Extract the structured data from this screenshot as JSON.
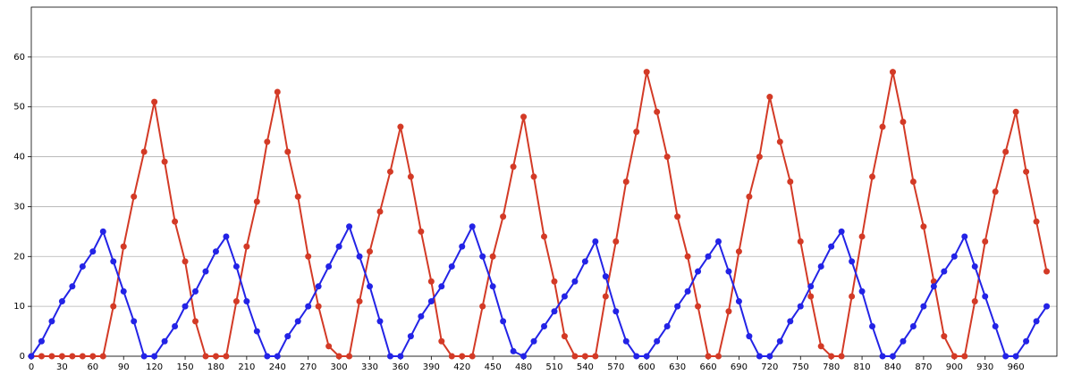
{
  "chart_data": {
    "type": "line",
    "x": [
      0,
      10,
      20,
      30,
      40,
      50,
      60,
      70,
      80,
      90,
      100,
      110,
      120,
      130,
      140,
      150,
      160,
      170,
      180,
      190,
      200,
      210,
      220,
      230,
      240,
      250,
      260,
      270,
      280,
      290,
      300,
      310,
      320,
      330,
      340,
      350,
      360,
      370,
      380,
      390,
      400,
      410,
      420,
      430,
      440,
      450,
      460,
      470,
      480,
      490,
      500,
      510,
      520,
      530,
      540,
      550,
      560,
      570,
      580,
      590,
      600,
      610,
      620,
      630,
      640,
      650,
      660,
      670,
      680,
      690,
      700,
      710,
      720,
      730,
      740,
      750,
      760,
      770,
      780,
      790,
      800,
      810,
      820,
      830,
      840,
      850,
      860,
      870,
      880,
      890,
      900,
      910,
      920,
      930,
      940,
      950,
      960,
      970,
      980,
      990
    ],
    "series": [
      {
        "color": "#d33a26",
        "values": [
          0,
          0,
          0,
          0,
          0,
          0,
          0,
          0,
          10,
          22,
          32,
          41,
          51,
          39,
          27,
          19,
          7,
          0,
          0,
          0,
          11,
          22,
          31,
          43,
          53,
          41,
          32,
          20,
          10,
          2,
          0,
          0,
          11,
          21,
          29,
          37,
          46,
          36,
          25,
          15,
          3,
          0,
          0,
          0,
          10,
          20,
          28,
          38,
          48,
          36,
          24,
          15,
          4,
          0,
          0,
          0,
          12,
          23,
          35,
          45,
          57,
          49,
          40,
          28,
          20,
          10,
          0,
          0,
          9,
          21,
          32,
          40,
          52,
          43,
          35,
          23,
          12,
          2,
          0,
          0,
          12,
          24,
          36,
          46,
          57,
          47,
          35,
          26,
          15,
          4,
          0,
          0,
          11,
          23,
          33,
          41,
          49,
          37,
          27,
          17
        ]
      },
      {
        "color": "#2323e6",
        "values": [
          0,
          3,
          7,
          11,
          14,
          18,
          21,
          25,
          19,
          13,
          7,
          0,
          0,
          3,
          6,
          10,
          13,
          17,
          21,
          24,
          18,
          11,
          5,
          0,
          0,
          4,
          7,
          10,
          14,
          18,
          22,
          26,
          20,
          14,
          7,
          0,
          0,
          4,
          8,
          11,
          14,
          18,
          22,
          26,
          20,
          14,
          7,
          1,
          0,
          3,
          6,
          9,
          12,
          15,
          19,
          23,
          16,
          9,
          3,
          0,
          0,
          3,
          6,
          10,
          13,
          17,
          20,
          23,
          17,
          11,
          4,
          0,
          0,
          3,
          7,
          10,
          14,
          18,
          22,
          25,
          19,
          13,
          6,
          0,
          0,
          3,
          6,
          10,
          14,
          17,
          20,
          24,
          18,
          12,
          6,
          0,
          0,
          3,
          7,
          10
        ]
      }
    ],
    "xlim": [
      0,
      1000
    ],
    "ylim": [
      0,
      70
    ],
    "xticks": [
      0,
      30,
      60,
      90,
      120,
      150,
      180,
      210,
      240,
      270,
      300,
      330,
      360,
      390,
      420,
      450,
      480,
      510,
      540,
      570,
      600,
      630,
      660,
      690,
      720,
      750,
      780,
      810,
      840,
      870,
      900,
      930,
      960
    ],
    "yticks": [
      0,
      10,
      20,
      30,
      40,
      50,
      60
    ],
    "grid": "y"
  }
}
